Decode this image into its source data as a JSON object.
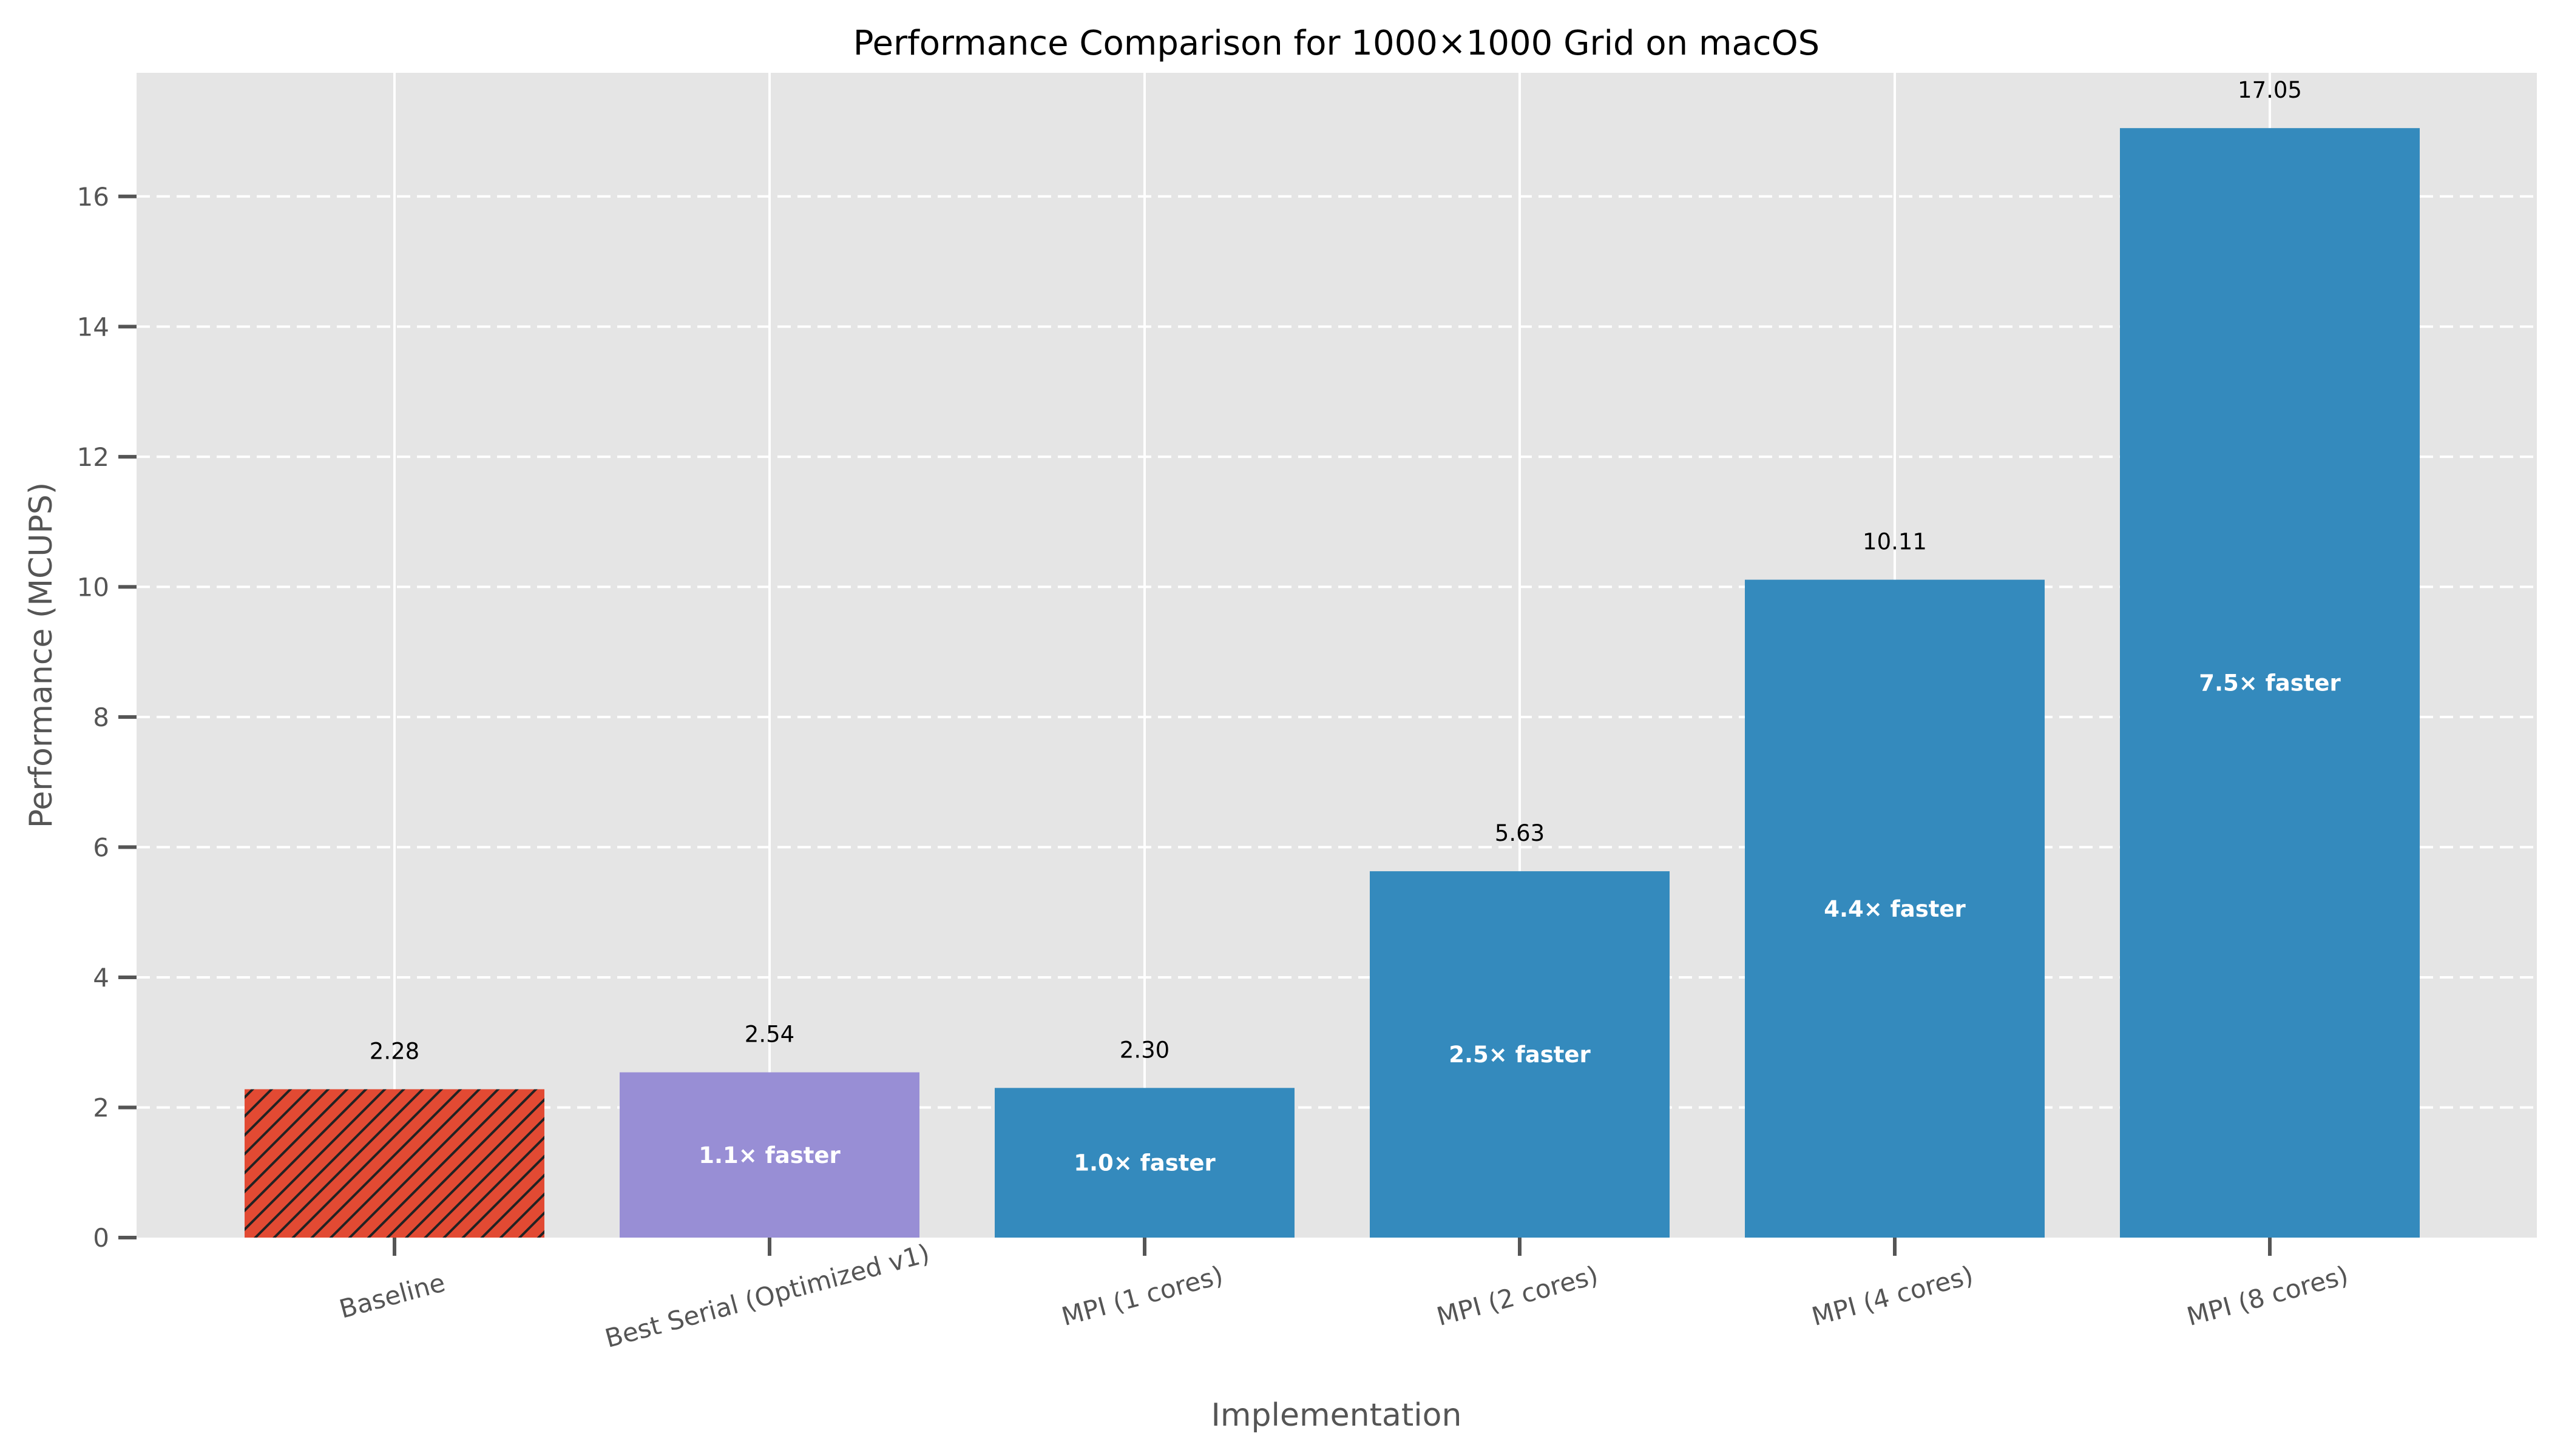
{
  "chart_data": {
    "type": "bar",
    "title": "Performance Comparison for 1000×1000 Grid on macOS",
    "xlabel": "Implementation",
    "ylabel": "Performance (MCUPS)",
    "ylim": [
      0,
      17.9
    ],
    "yticks": [
      0,
      2,
      4,
      6,
      8,
      10,
      12,
      14,
      16
    ],
    "grid": true,
    "categories": [
      "Baseline",
      "Best Serial (Optimized v1)",
      "MPI (1 cores)",
      "MPI (2 cores)",
      "MPI (4 cores)",
      "MPI (8 cores)"
    ],
    "values": [
      2.28,
      2.54,
      2.3,
      5.63,
      10.11,
      17.05
    ],
    "value_labels": [
      "2.28",
      "2.54",
      "2.30",
      "5.63",
      "10.11",
      "17.05"
    ],
    "speedup_labels": [
      "",
      "1.1× faster",
      "1.0× faster",
      "2.5× faster",
      "4.4× faster",
      "7.5× faster"
    ],
    "colors": [
      "#e24a33",
      "#988ed5",
      "#348abd",
      "#348abd",
      "#348abd",
      "#348abd"
    ],
    "hatched": [
      true,
      false,
      false,
      false,
      false,
      false
    ],
    "background_color": "#e5e5e5"
  }
}
